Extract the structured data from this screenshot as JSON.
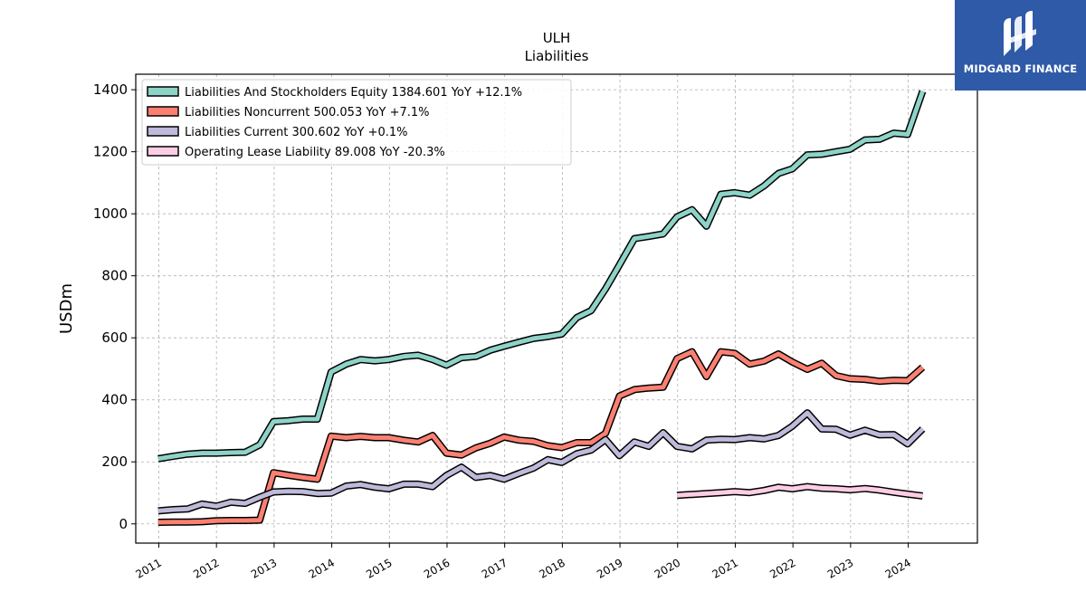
{
  "brand": {
    "name": "MIDGARD FINANCE",
    "color": "#2f5aa8"
  },
  "chart_data": {
    "type": "line",
    "title": "ULH",
    "subtitle": "Liabilities",
    "ylabel": "USDm",
    "xlabel": "",
    "xlim": [
      2010.6,
      2025.2
    ],
    "ylim": [
      -62,
      1450
    ],
    "yticks": [
      0,
      200,
      400,
      600,
      800,
      1000,
      1200,
      1400
    ],
    "xticks": [
      2011,
      2012,
      2013,
      2014,
      2015,
      2016,
      2017,
      2018,
      2019,
      2020,
      2021,
      2022,
      2023,
      2024
    ],
    "xtick_labels": [
      "2011",
      "2012",
      "2013",
      "2014",
      "2015",
      "2016",
      "2017",
      "2018",
      "2019",
      "2020",
      "2021",
      "2022",
      "2023",
      "2024"
    ],
    "grid": true,
    "legend_position": "top-left",
    "series": [
      {
        "name": "Liabilities And Stockholders Equity",
        "legend": "Liabilities And Stockholders Equity  1384.601 YoY +12.1%",
        "color": "#8dd3c7",
        "points": [
          [
            2010.99,
            210
          ],
          [
            2011.25,
            218
          ],
          [
            2011.5,
            225
          ],
          [
            2011.75,
            228
          ],
          [
            2012.0,
            228
          ],
          [
            2012.25,
            230
          ],
          [
            2012.5,
            231
          ],
          [
            2012.75,
            255
          ],
          [
            2012.99,
            330
          ],
          [
            2013.25,
            333
          ],
          [
            2013.5,
            338
          ],
          [
            2013.75,
            338
          ],
          [
            2013.99,
            490
          ],
          [
            2014.25,
            515
          ],
          [
            2014.5,
            530
          ],
          [
            2014.75,
            526
          ],
          [
            2014.99,
            530
          ],
          [
            2015.25,
            540
          ],
          [
            2015.5,
            544
          ],
          [
            2015.75,
            530
          ],
          [
            2015.99,
            512
          ],
          [
            2016.25,
            536
          ],
          [
            2016.5,
            540
          ],
          [
            2016.75,
            560
          ],
          [
            2016.99,
            573
          ],
          [
            2017.25,
            586
          ],
          [
            2017.5,
            598
          ],
          [
            2017.75,
            604
          ],
          [
            2017.99,
            612
          ],
          [
            2018.25,
            665
          ],
          [
            2018.5,
            688
          ],
          [
            2018.75,
            758
          ],
          [
            2018.99,
            835
          ],
          [
            2019.25,
            920
          ],
          [
            2019.5,
            927
          ],
          [
            2019.75,
            935
          ],
          [
            2019.99,
            990
          ],
          [
            2020.25,
            1013
          ],
          [
            2020.5,
            960
          ],
          [
            2020.75,
            1063
          ],
          [
            2020.99,
            1068
          ],
          [
            2021.25,
            1060
          ],
          [
            2021.5,
            1090
          ],
          [
            2021.75,
            1130
          ],
          [
            2021.99,
            1145
          ],
          [
            2022.25,
            1190
          ],
          [
            2022.5,
            1192
          ],
          [
            2022.75,
            1200
          ],
          [
            2022.99,
            1208
          ],
          [
            2023.25,
            1238
          ],
          [
            2023.5,
            1240
          ],
          [
            2023.75,
            1260
          ],
          [
            2023.99,
            1256
          ],
          [
            2024.25,
            1395
          ]
        ]
      },
      {
        "name": "Liabilities Noncurrent",
        "legend": "Liabilities Noncurrent  500.053 YoY +7.1%",
        "color": "#fb8072",
        "points": [
          [
            2010.99,
            5
          ],
          [
            2011.25,
            6
          ],
          [
            2011.5,
            6
          ],
          [
            2011.75,
            7
          ],
          [
            2012.0,
            10
          ],
          [
            2012.25,
            11
          ],
          [
            2012.5,
            11
          ],
          [
            2012.75,
            12
          ],
          [
            2012.99,
            165
          ],
          [
            2013.25,
            157
          ],
          [
            2013.5,
            150
          ],
          [
            2013.75,
            144
          ],
          [
            2013.99,
            283
          ],
          [
            2014.25,
            278
          ],
          [
            2014.5,
            282
          ],
          [
            2014.75,
            278
          ],
          [
            2014.99,
            278
          ],
          [
            2015.25,
            270
          ],
          [
            2015.5,
            264
          ],
          [
            2015.75,
            285
          ],
          [
            2015.99,
            228
          ],
          [
            2016.25,
            222
          ],
          [
            2016.5,
            245
          ],
          [
            2016.75,
            260
          ],
          [
            2016.99,
            280
          ],
          [
            2017.25,
            270
          ],
          [
            2017.5,
            266
          ],
          [
            2017.75,
            252
          ],
          [
            2017.99,
            246
          ],
          [
            2018.25,
            262
          ],
          [
            2018.5,
            262
          ],
          [
            2018.75,
            292
          ],
          [
            2018.99,
            412
          ],
          [
            2019.25,
            433
          ],
          [
            2019.5,
            438
          ],
          [
            2019.75,
            441
          ],
          [
            2019.99,
            533
          ],
          [
            2020.25,
            555
          ],
          [
            2020.5,
            475
          ],
          [
            2020.75,
            555
          ],
          [
            2020.99,
            550
          ],
          [
            2021.25,
            515
          ],
          [
            2021.5,
            525
          ],
          [
            2021.75,
            548
          ],
          [
            2021.99,
            522
          ],
          [
            2022.25,
            498
          ],
          [
            2022.5,
            518
          ],
          [
            2022.75,
            478
          ],
          [
            2022.99,
            468
          ],
          [
            2023.25,
            466
          ],
          [
            2023.5,
            460
          ],
          [
            2023.75,
            463
          ],
          [
            2023.99,
            462
          ],
          [
            2024.25,
            505
          ]
        ]
      },
      {
        "name": "Liabilities Current",
        "legend": "Liabilities Current  300.602 YoY +0.1%",
        "color": "#bebada",
        "points": [
          [
            2010.99,
            42
          ],
          [
            2011.25,
            46
          ],
          [
            2011.5,
            48
          ],
          [
            2011.75,
            64
          ],
          [
            2012.0,
            57
          ],
          [
            2012.25,
            70
          ],
          [
            2012.5,
            66
          ],
          [
            2012.75,
            86
          ],
          [
            2012.99,
            103
          ],
          [
            2013.25,
            105
          ],
          [
            2013.5,
            104
          ],
          [
            2013.75,
            98
          ],
          [
            2013.99,
            99
          ],
          [
            2014.25,
            122
          ],
          [
            2014.5,
            127
          ],
          [
            2014.75,
            118
          ],
          [
            2014.99,
            113
          ],
          [
            2015.25,
            128
          ],
          [
            2015.5,
            128
          ],
          [
            2015.75,
            120
          ],
          [
            2015.99,
            156
          ],
          [
            2016.25,
            183
          ],
          [
            2016.5,
            150
          ],
          [
            2016.75,
            156
          ],
          [
            2016.99,
            144
          ],
          [
            2017.25,
            163
          ],
          [
            2017.5,
            180
          ],
          [
            2017.75,
            207
          ],
          [
            2017.99,
            198
          ],
          [
            2018.25,
            226
          ],
          [
            2018.5,
            238
          ],
          [
            2018.75,
            272
          ],
          [
            2018.99,
            220
          ],
          [
            2019.25,
            264
          ],
          [
            2019.5,
            250
          ],
          [
            2019.75,
            294
          ],
          [
            2019.99,
            250
          ],
          [
            2020.25,
            242
          ],
          [
            2020.5,
            270
          ],
          [
            2020.75,
            273
          ],
          [
            2020.99,
            272
          ],
          [
            2021.25,
            278
          ],
          [
            2021.5,
            274
          ],
          [
            2021.75,
            285
          ],
          [
            2021.99,
            315
          ],
          [
            2022.25,
            358
          ],
          [
            2022.5,
            306
          ],
          [
            2022.75,
            305
          ],
          [
            2022.99,
            286
          ],
          [
            2023.25,
            302
          ],
          [
            2023.5,
            287
          ],
          [
            2023.75,
            288
          ],
          [
            2023.99,
            258
          ],
          [
            2024.25,
            306
          ]
        ]
      },
      {
        "name": "Operating Lease Liability",
        "legend": "Operating Lease Liability  89.008 YoY -20.3%",
        "color": "#fccde5",
        "points": [
          [
            2019.99,
            92
          ],
          [
            2020.25,
            95
          ],
          [
            2020.5,
            98
          ],
          [
            2020.75,
            101
          ],
          [
            2020.99,
            104
          ],
          [
            2021.25,
            101
          ],
          [
            2021.5,
            108
          ],
          [
            2021.75,
            118
          ],
          [
            2021.99,
            113
          ],
          [
            2022.25,
            120
          ],
          [
            2022.5,
            115
          ],
          [
            2022.75,
            113
          ],
          [
            2022.99,
            110
          ],
          [
            2023.25,
            114
          ],
          [
            2023.5,
            109
          ],
          [
            2023.75,
            102
          ],
          [
            2023.99,
            96
          ],
          [
            2024.25,
            90
          ]
        ]
      }
    ]
  }
}
